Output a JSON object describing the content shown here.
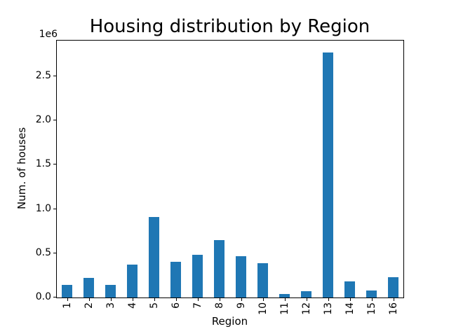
{
  "chart_data": {
    "type": "bar",
    "title": "Housing distribution by Region",
    "xlabel": "Region",
    "ylabel": "Num. of houses",
    "y_axis_offset_label": "1e6",
    "categories": [
      "1",
      "2",
      "3",
      "4",
      "5",
      "6",
      "7",
      "8",
      "9",
      "10",
      "11",
      "12",
      "13",
      "14",
      "15",
      "16"
    ],
    "values": [
      140000,
      220000,
      140000,
      370000,
      910000,
      400000,
      480000,
      650000,
      470000,
      390000,
      40000,
      70000,
      2770000,
      180000,
      80000,
      230000
    ],
    "ytick_labels": [
      "0.0",
      "0.5",
      "1.0",
      "1.5",
      "2.0",
      "2.5"
    ],
    "ytick_values": [
      0,
      500000,
      1000000,
      1500000,
      2000000,
      2500000
    ],
    "ylim": [
      0,
      2905000
    ],
    "bar_color": "#1f77b4",
    "background_color": "#ffffff",
    "spine_color": "#000000",
    "grid": false,
    "legend_position": "none",
    "x_tick_rotation_deg": 90
  }
}
